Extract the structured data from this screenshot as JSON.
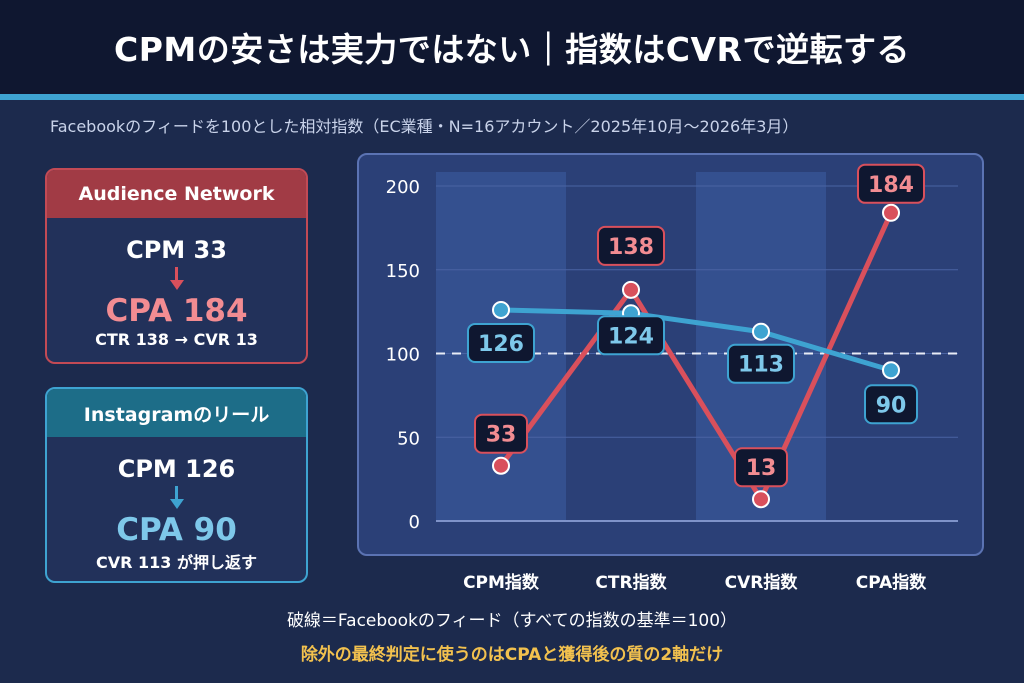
{
  "header": {
    "title": "CPMの安さは実力ではない｜指数はCVRで逆転する",
    "subtitle": "Facebookのフィードを100とした相対指数（EC業種・N=16アカウント／2025年10月〜2026年3月）"
  },
  "cards": {
    "audience_network": {
      "label": "Audience Network",
      "cpm": "CPM 33",
      "cpa": "CPA 184",
      "note": "CTR 138 → CVR 13"
    },
    "instagram_reels": {
      "label": "Instagramのリール",
      "cpm": "CPM 126",
      "cpa": "CPA 90",
      "note": "CVR 113 が押し返す"
    }
  },
  "colors": {
    "background": "#1c2a4d",
    "header_bg": "#0f1730",
    "accent_line": "#3ea3d1",
    "audience_network": "#d9505c",
    "audience_network_label": "#f28c92",
    "instagram": "#3ea3d1",
    "instagram_label": "#7ec8ea",
    "plot_bg": "#2b4077",
    "highlight": "#f2c14e"
  },
  "chart_data": {
    "type": "line",
    "categories": [
      "CPM指数",
      "CTR指数",
      "CVR指数",
      "CPA指数"
    ],
    "series": [
      {
        "values": [
          33,
          138,
          13,
          184
        ],
        "color": "#d9505c",
        "label_color": "#f28c92"
      },
      {
        "values": [
          126,
          124,
          113,
          90
        ],
        "color": "#3ea3d1",
        "label_color": "#7ec8ea"
      }
    ],
    "ylim": [
      0,
      200
    ],
    "yticks": [
      0,
      50,
      100,
      150,
      200
    ],
    "reference_line": 100,
    "grid": true,
    "shaded_categories": [
      0,
      2
    ]
  },
  "footer": {
    "note": "破線＝Facebookのフィード（すべての指数の基準＝100）",
    "conclusion": "除外の最終判定に使うのはCPAと獲得後の質の2軸だけ"
  }
}
